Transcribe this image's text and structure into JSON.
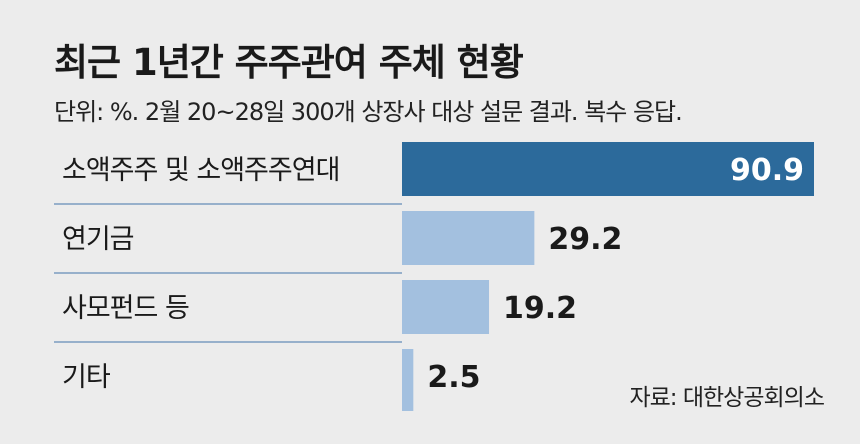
{
  "title": "최근 1년간 주주관여 주체 현황",
  "subtitle": "단위: %. 2월 20~28일 300개 상장사 대상 설문 결과. 복수 응답.",
  "source": "자료: 대한상공회의소",
  "colors": {
    "background": "#ececec",
    "highlight_bar": "#2c6a9b",
    "bar": "#a3c0df",
    "separator": "#7b9cc0"
  },
  "chart_data": {
    "type": "bar",
    "orientation": "horizontal",
    "categories": [
      "소액주주 및 소액주주연대",
      "연기금",
      "사모펀드 등",
      "기타"
    ],
    "values": [
      90.9,
      29.2,
      19.2,
      2.5
    ],
    "value_labels": [
      "90.9",
      "29.2",
      "19.2",
      "2.5"
    ],
    "unit": "%",
    "xlim": [
      0,
      90.9
    ],
    "highlight_index": 0,
    "grid": false,
    "legend": "none"
  }
}
